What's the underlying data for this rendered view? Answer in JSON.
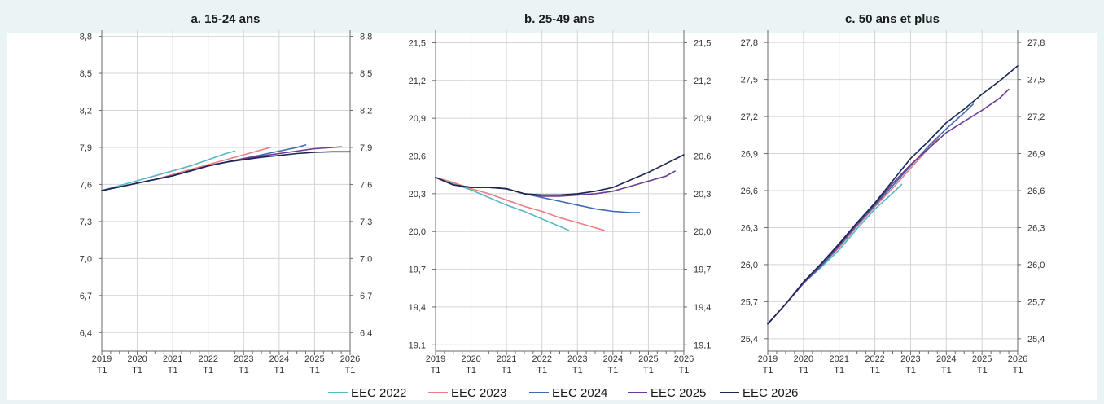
{
  "chart_data": [
    {
      "type": "line",
      "title": "a. 15-24 ans",
      "ylim": [
        6.25,
        8.85
      ],
      "yticks": [
        "6,4",
        "6,7",
        "7,0",
        "7,3",
        "7,6",
        "7,9",
        "8,2",
        "8,5",
        "8,8"
      ],
      "ytick_values": [
        6.4,
        6.7,
        7.0,
        7.3,
        7.6,
        7.9,
        8.2,
        8.5,
        8.8
      ],
      "xlim": [
        2019.0,
        2026.0
      ],
      "xtick_years": [
        "2019",
        "2020",
        "2021",
        "2022",
        "2023",
        "2024",
        "2025",
        "2026"
      ],
      "xtick_quarter": "T1",
      "grid": true,
      "series": [
        {
          "name": "EEC 2022",
          "x": [
            2019.0,
            2019.5,
            2020.0,
            2020.5,
            2021.0,
            2021.5,
            2022.0,
            2022.5,
            2022.75
          ],
          "y": [
            7.55,
            7.59,
            7.63,
            7.67,
            7.71,
            7.75,
            7.8,
            7.85,
            7.87
          ]
        },
        {
          "name": "EEC 2023",
          "x": [
            2019.0,
            2019.5,
            2020.0,
            2020.5,
            2021.0,
            2021.5,
            2022.0,
            2022.5,
            2023.0,
            2023.5,
            2023.75
          ],
          "y": [
            7.55,
            7.58,
            7.61,
            7.64,
            7.68,
            7.72,
            7.76,
            7.8,
            7.84,
            7.88,
            7.9
          ]
        },
        {
          "name": "EEC 2024",
          "x": [
            2019.0,
            2019.5,
            2020.0,
            2020.5,
            2021.0,
            2021.5,
            2022.0,
            2022.5,
            2023.0,
            2023.5,
            2024.0,
            2024.5,
            2024.75
          ],
          "y": [
            7.55,
            7.58,
            7.61,
            7.64,
            7.67,
            7.71,
            7.75,
            7.78,
            7.81,
            7.84,
            7.87,
            7.9,
            7.92
          ]
        },
        {
          "name": "EEC 2025",
          "x": [
            2019.0,
            2019.5,
            2020.0,
            2020.5,
            2021.0,
            2021.5,
            2022.0,
            2022.5,
            2023.0,
            2023.5,
            2024.0,
            2024.5,
            2025.0,
            2025.5,
            2025.75
          ],
          "y": [
            7.55,
            7.58,
            7.61,
            7.64,
            7.67,
            7.71,
            7.75,
            7.78,
            7.81,
            7.83,
            7.85,
            7.87,
            7.89,
            7.9,
            7.905
          ]
        },
        {
          "name": "EEC 2026",
          "x": [
            2019.0,
            2019.5,
            2020.0,
            2020.5,
            2021.0,
            2021.5,
            2022.0,
            2022.5,
            2023.0,
            2023.5,
            2024.0,
            2024.5,
            2025.0,
            2025.5,
            2026.0
          ],
          "y": [
            7.55,
            7.58,
            7.61,
            7.64,
            7.67,
            7.71,
            7.75,
            7.78,
            7.8,
            7.82,
            7.835,
            7.85,
            7.86,
            7.865,
            7.865
          ]
        }
      ]
    },
    {
      "type": "line",
      "title": "b. 25-49 ans",
      "ylim": [
        19.05,
        21.6
      ],
      "yticks": [
        "19,1",
        "19,4",
        "19,7",
        "20,0",
        "20,3",
        "20,6",
        "20,9",
        "21,2",
        "21,5"
      ],
      "ytick_values": [
        19.1,
        19.4,
        19.7,
        20.0,
        20.3,
        20.6,
        20.9,
        21.2,
        21.5
      ],
      "xlim": [
        2019.0,
        2026.0
      ],
      "xtick_years": [
        "2019",
        "2020",
        "2021",
        "2022",
        "2023",
        "2024",
        "2025",
        "2026"
      ],
      "xtick_quarter": "T1",
      "grid": true,
      "series": [
        {
          "name": "EEC 2022",
          "x": [
            2019.0,
            2019.5,
            2020.0,
            2020.5,
            2021.0,
            2021.5,
            2022.0,
            2022.5,
            2022.75
          ],
          "y": [
            20.43,
            20.38,
            20.33,
            20.27,
            20.21,
            20.16,
            20.1,
            20.04,
            20.01
          ]
        },
        {
          "name": "EEC 2023",
          "x": [
            2019.0,
            2019.5,
            2020.0,
            2020.5,
            2021.0,
            2021.5,
            2022.0,
            2022.5,
            2023.0,
            2023.5,
            2023.75
          ],
          "y": [
            20.43,
            20.39,
            20.34,
            20.3,
            20.25,
            20.2,
            20.16,
            20.11,
            20.07,
            20.03,
            20.01
          ]
        },
        {
          "name": "EEC 2024",
          "x": [
            2019.0,
            2019.5,
            2020.0,
            2020.5,
            2021.0,
            2021.5,
            2022.0,
            2022.5,
            2023.0,
            2023.5,
            2024.0,
            2024.5,
            2024.75
          ],
          "y": [
            20.43,
            20.37,
            20.35,
            20.35,
            20.34,
            20.3,
            20.27,
            20.24,
            20.21,
            20.18,
            20.16,
            20.15,
            20.15
          ]
        },
        {
          "name": "EEC 2025",
          "x": [
            2019.0,
            2019.5,
            2020.0,
            2020.5,
            2021.0,
            2021.5,
            2022.0,
            2022.5,
            2023.0,
            2023.5,
            2024.0,
            2024.5,
            2025.0,
            2025.5,
            2025.75
          ],
          "y": [
            20.43,
            20.37,
            20.35,
            20.35,
            20.34,
            20.3,
            20.28,
            20.28,
            20.29,
            20.3,
            20.32,
            20.36,
            20.4,
            20.44,
            20.48
          ]
        },
        {
          "name": "EEC 2026",
          "x": [
            2019.0,
            2019.5,
            2020.0,
            2020.5,
            2021.0,
            2021.5,
            2022.0,
            2022.5,
            2023.0,
            2023.5,
            2024.0,
            2024.5,
            2025.0,
            2025.5,
            2026.0
          ],
          "y": [
            20.43,
            20.37,
            20.35,
            20.35,
            20.34,
            20.3,
            20.29,
            20.29,
            20.3,
            20.32,
            20.35,
            20.41,
            20.47,
            20.54,
            20.61
          ]
        }
      ]
    },
    {
      "type": "line",
      "title": "c. 50 ans et plus",
      "ylim": [
        25.3,
        27.9
      ],
      "yticks": [
        "25,4",
        "25,7",
        "26,0",
        "26,3",
        "26,6",
        "26,9",
        "27,2",
        "27,5",
        "27,8"
      ],
      "ytick_values": [
        25.4,
        25.7,
        26.0,
        26.3,
        26.6,
        26.9,
        27.2,
        27.5,
        27.8
      ],
      "xlim": [
        2019.0,
        2026.0
      ],
      "xtick_years": [
        "2019",
        "2020",
        "2021",
        "2022",
        "2023",
        "2024",
        "2025",
        "2026"
      ],
      "xtick_quarter": "T1",
      "grid": true,
      "series": [
        {
          "name": "EEC 2022",
          "x": [
            2019.0,
            2019.5,
            2020.0,
            2020.5,
            2021.0,
            2021.5,
            2022.0,
            2022.5,
            2022.75
          ],
          "y": [
            25.52,
            25.68,
            25.85,
            25.98,
            26.12,
            26.29,
            26.45,
            26.58,
            26.65
          ]
        },
        {
          "name": "EEC 2023",
          "x": [
            2019.0,
            2019.5,
            2020.0,
            2020.5,
            2021.0,
            2021.5,
            2022.0,
            2022.5,
            2023.0,
            2023.5,
            2023.75
          ],
          "y": [
            25.52,
            25.68,
            25.85,
            25.99,
            26.14,
            26.31,
            26.47,
            26.62,
            26.78,
            26.94,
            27.02
          ]
        },
        {
          "name": "EEC 2024",
          "x": [
            2019.0,
            2019.5,
            2020.0,
            2020.5,
            2021.0,
            2021.5,
            2022.0,
            2022.5,
            2023.0,
            2023.5,
            2024.0,
            2024.5,
            2024.75
          ],
          "y": [
            25.52,
            25.68,
            25.85,
            25.99,
            26.15,
            26.32,
            26.48,
            26.64,
            26.8,
            26.96,
            27.1,
            27.23,
            27.3
          ]
        },
        {
          "name": "EEC 2025",
          "x": [
            2019.0,
            2019.5,
            2020.0,
            2020.5,
            2021.0,
            2021.5,
            2022.0,
            2022.5,
            2023.0,
            2023.5,
            2024.0,
            2024.5,
            2025.0,
            2025.5,
            2025.75
          ],
          "y": [
            25.52,
            25.68,
            25.85,
            26.0,
            26.16,
            26.33,
            26.49,
            26.66,
            26.81,
            26.94,
            27.07,
            27.16,
            27.25,
            27.35,
            27.42
          ]
        },
        {
          "name": "EEC 2026",
          "x": [
            2019.0,
            2019.5,
            2020.0,
            2020.5,
            2021.0,
            2021.5,
            2022.0,
            2022.5,
            2023.0,
            2023.5,
            2024.0,
            2024.5,
            2025.0,
            2025.5,
            2026.0
          ],
          "y": [
            25.52,
            25.68,
            25.86,
            26.01,
            26.17,
            26.34,
            26.5,
            26.68,
            26.86,
            27.0,
            27.15,
            27.26,
            27.38,
            27.49,
            27.61
          ]
        }
      ]
    }
  ],
  "legend": [
    {
      "name": "EEC 2022",
      "color": "#56b8c3"
    },
    {
      "name": "EEC 2023",
      "color": "#ea7e85"
    },
    {
      "name": "EEC 2024",
      "color": "#3d6ab4"
    },
    {
      "name": "EEC 2025",
      "color": "#6b3b94"
    },
    {
      "name": "EEC 2026",
      "color": "#1b2650"
    }
  ],
  "colors": {
    "background": "#eaf4f5",
    "plot": "#ffffff",
    "grid": "#d4d4d4",
    "axis": "#6a6a6a"
  }
}
